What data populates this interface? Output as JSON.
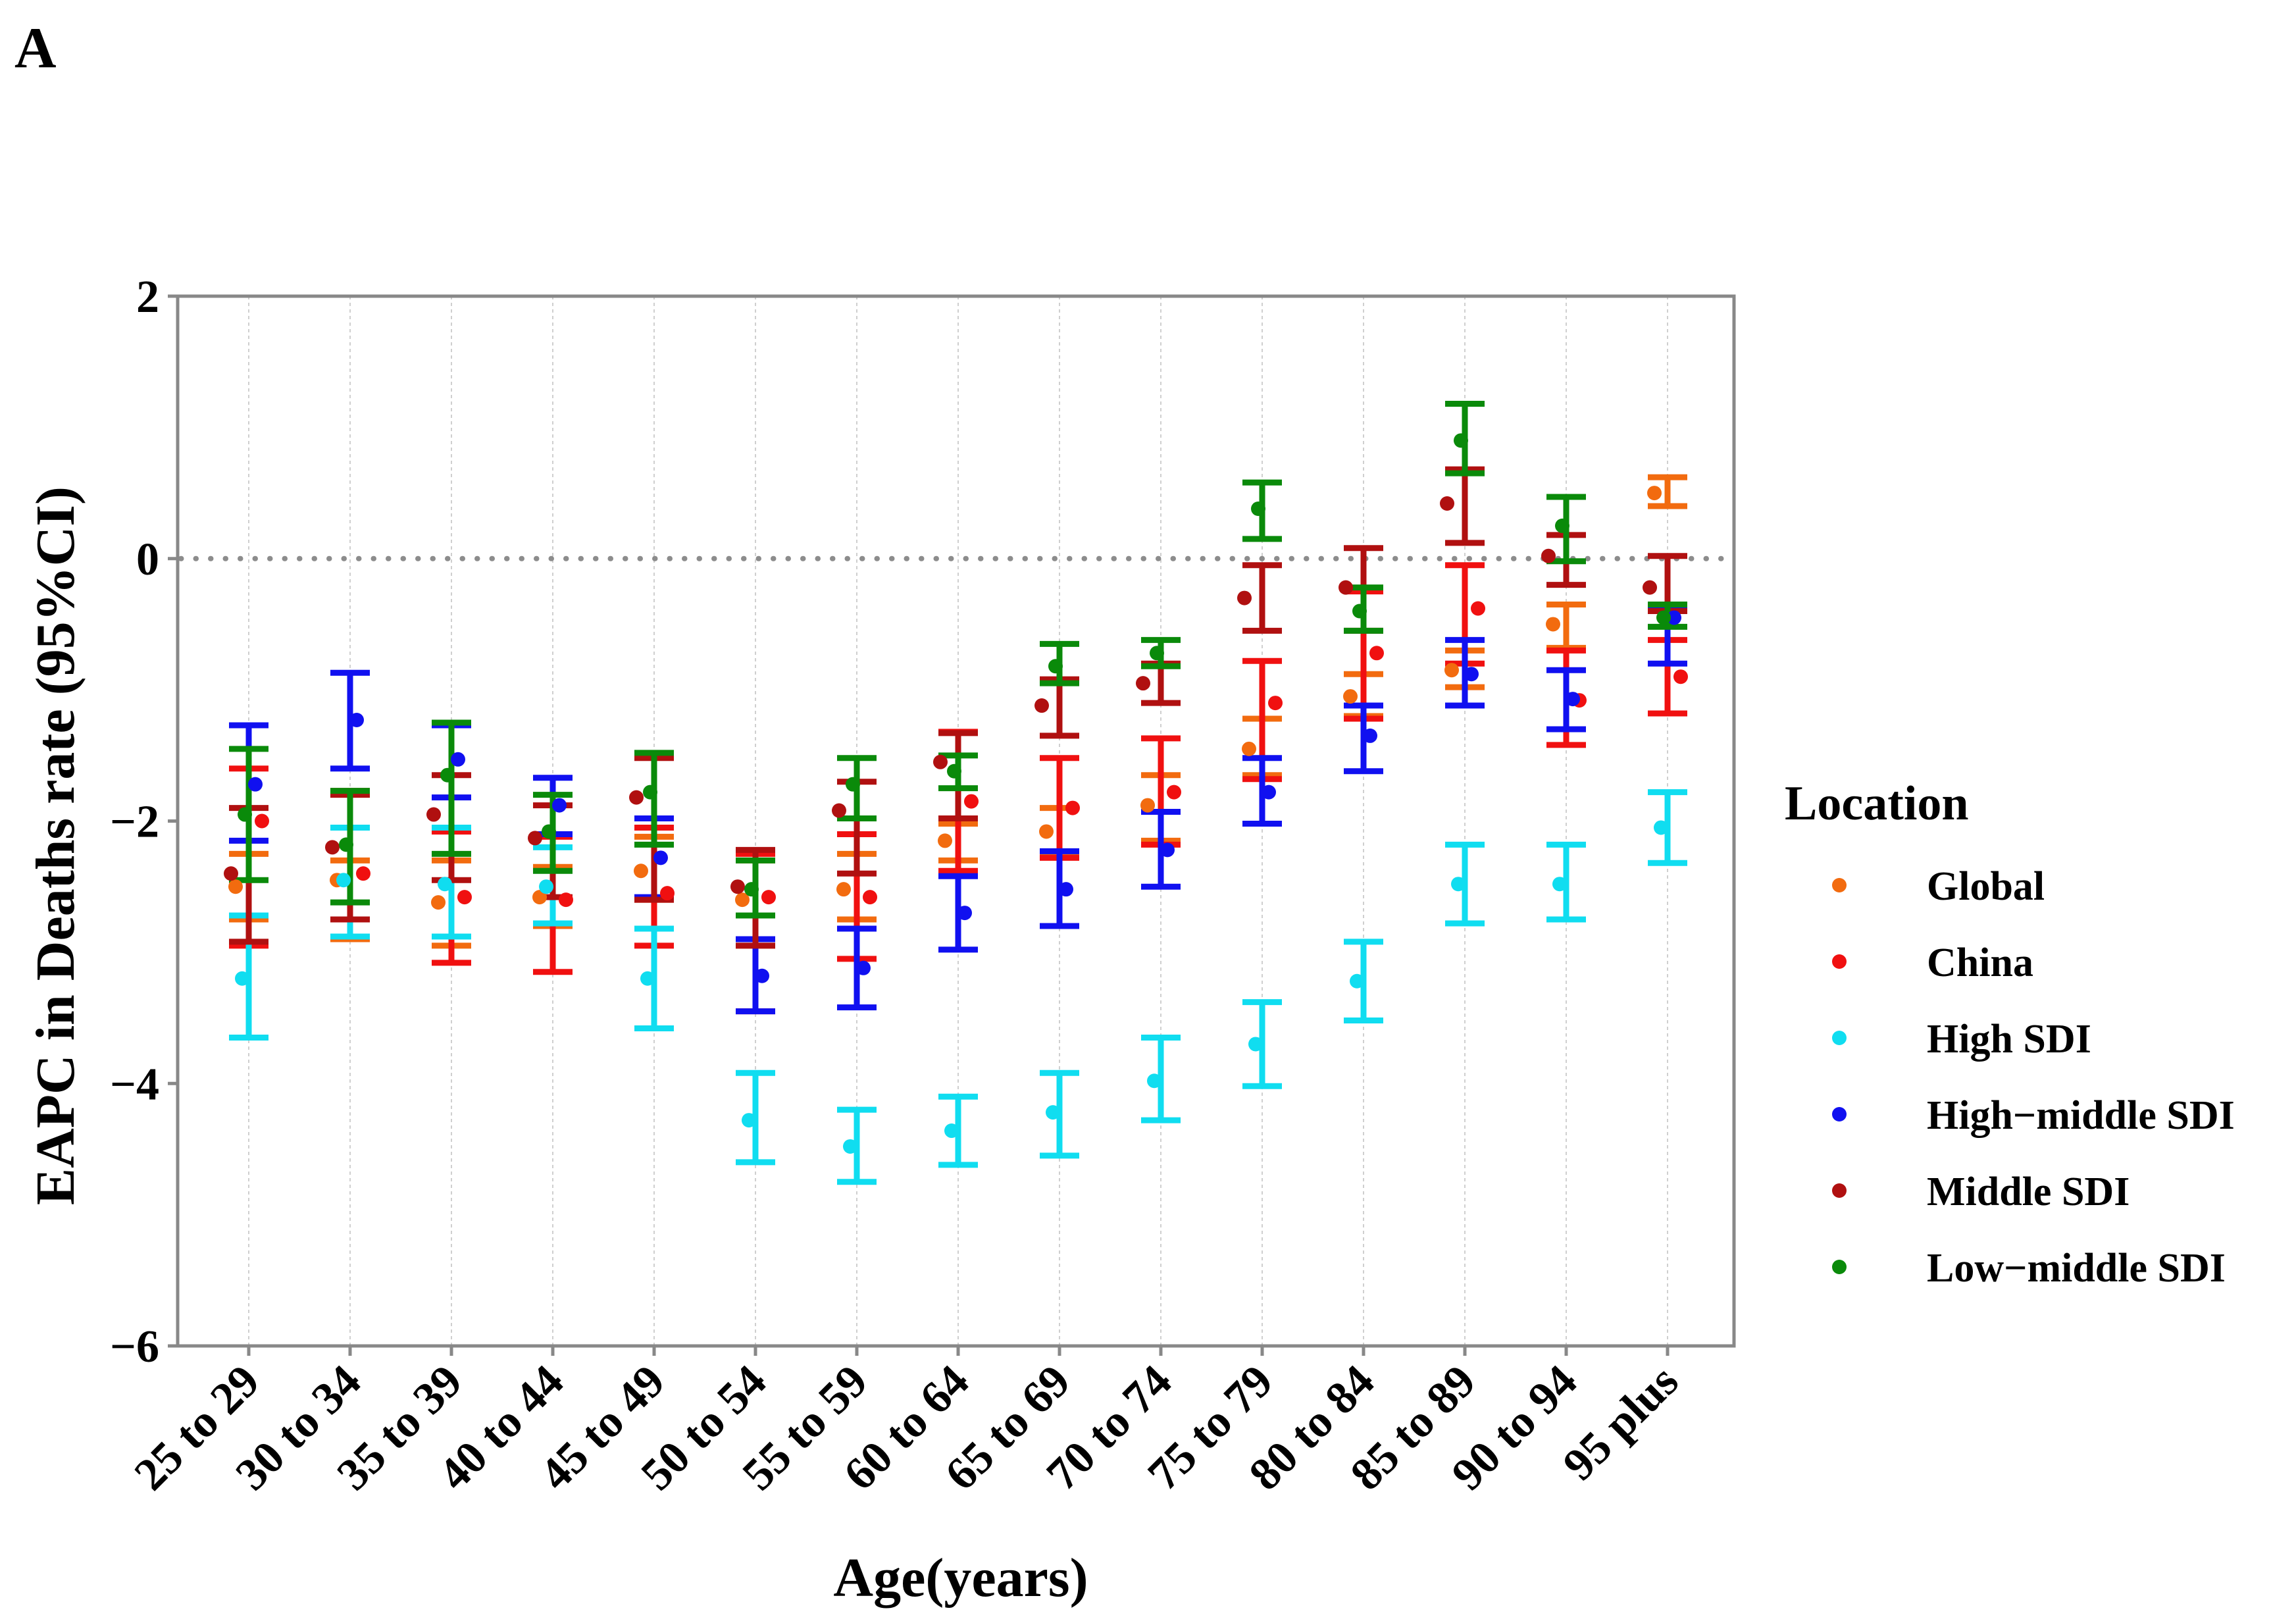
{
  "panel_label": "A",
  "chart_data": {
    "type": "scatter-errorbar",
    "title": "",
    "xlabel": "Age(years)",
    "ylabel": "EAPC in Deaths rate (95%CI)",
    "ylim": [
      -6,
      2
    ],
    "yticks": [
      2,
      0,
      -2,
      -4,
      -6
    ],
    "ytick_labels": [
      "2",
      "0",
      "−2",
      "−4",
      "−6"
    ],
    "reference_line": 0,
    "categories": [
      "25 to 29",
      "30 to 34",
      "35 to 39",
      "40 to 44",
      "45 to 49",
      "50 to 54",
      "55 to 59",
      "60 to 64",
      "65 to 69",
      "70 to 74",
      "75 to 79",
      "80 to 84",
      "85 to 89",
      "90 to 94",
      "95 plus"
    ],
    "legend_title": "Location",
    "legend_position": "right",
    "series": [
      {
        "name": "Global",
        "color": "#F26B0F",
        "values": [
          -2.5,
          -2.45,
          -2.62,
          -2.58,
          -2.38,
          -2.6,
          -2.52,
          -2.15,
          -2.08,
          -1.88,
          -1.45,
          -1.05,
          -0.85,
          -0.5,
          0.5
        ],
        "lower": [
          -2.75,
          -2.9,
          -2.95,
          -2.8,
          -2.6,
          -2.95,
          -2.75,
          -2.3,
          -2.25,
          -2.15,
          -1.65,
          -1.2,
          -0.98,
          -0.68,
          0.4
        ],
        "upper": [
          -2.25,
          -2.3,
          -2.3,
          -2.35,
          -2.12,
          -2.3,
          -2.25,
          -2.02,
          -1.9,
          -1.65,
          -1.22,
          -0.88,
          -0.7,
          -0.35,
          0.62
        ]
      },
      {
        "name": "China",
        "color": "#F01010",
        "values": [
          -2.0,
          -2.4,
          -2.58,
          -2.6,
          -2.55,
          -2.58,
          -2.58,
          -1.85,
          -1.9,
          -1.78,
          -1.1,
          -0.72,
          -0.38,
          -1.08,
          -0.9
        ],
        "lower": [
          -2.95,
          -2.88,
          -3.08,
          -3.15,
          -2.95,
          -3.45,
          -3.05,
          -2.38,
          -2.28,
          -2.18,
          -1.68,
          -1.22,
          -0.8,
          -1.42,
          -1.18
        ],
        "upper": [
          -1.6,
          -1.77,
          -2.08,
          -2.12,
          -2.05,
          -2.25,
          -2.1,
          -1.32,
          -1.52,
          -1.37,
          -0.78,
          -0.25,
          -0.05,
          -0.7,
          -0.62
        ]
      },
      {
        "name": "High SDI",
        "color": "#10DDF0",
        "values": [
          -3.2,
          -2.45,
          -2.48,
          -2.5,
          -3.2,
          -4.28,
          -4.48,
          -4.36,
          -4.22,
          -3.98,
          -3.7,
          -3.22,
          -2.48,
          -2.48,
          -2.05
        ],
        "lower": [
          -3.65,
          -2.88,
          -2.88,
          -2.78,
          -3.58,
          -4.6,
          -4.75,
          -4.62,
          -4.55,
          -4.28,
          -4.02,
          -3.52,
          -2.78,
          -2.75,
          -2.32
        ],
        "upper": [
          -2.72,
          -2.05,
          -2.05,
          -2.2,
          -2.82,
          -3.92,
          -4.2,
          -4.1,
          -3.92,
          -3.65,
          -3.38,
          -2.92,
          -2.18,
          -2.18,
          -1.78
        ]
      },
      {
        "name": "High−middle SDI",
        "color": "#1010F0",
        "values": [
          -1.72,
          -1.23,
          -1.53,
          -1.88,
          -2.28,
          -3.18,
          -3.12,
          -2.7,
          -2.52,
          -2.22,
          -1.78,
          -1.35,
          -0.88,
          -1.07,
          -0.45
        ],
        "lower": [
          -2.15,
          -1.6,
          -1.82,
          -2.1,
          -2.58,
          -3.45,
          -3.42,
          -2.98,
          -2.8,
          -2.5,
          -2.02,
          -1.62,
          -1.12,
          -1.3,
          -0.8
        ],
        "upper": [
          -1.27,
          -0.87,
          -1.27,
          -1.67,
          -1.98,
          -2.9,
          -2.82,
          -2.42,
          -2.23,
          -1.93,
          -1.52,
          -1.12,
          -0.62,
          -0.85,
          -0.38
        ]
      },
      {
        "name": "Middle SDI",
        "color": "#B01010",
        "values": [
          -2.4,
          -2.2,
          -1.95,
          -2.13,
          -1.82,
          -2.5,
          -1.92,
          -1.55,
          -1.12,
          -0.95,
          -0.3,
          -0.22,
          0.42,
          0.02,
          -0.22
        ],
        "lower": [
          -2.92,
          -2.75,
          -2.45,
          -2.58,
          -2.6,
          -2.95,
          -2.4,
          -1.98,
          -1.35,
          -1.1,
          -0.55,
          -0.55,
          0.12,
          -0.2,
          -0.4
        ],
        "upper": [
          -1.9,
          -1.8,
          -1.65,
          -1.88,
          -1.52,
          -2.22,
          -1.7,
          -1.33,
          -0.92,
          -0.8,
          -0.05,
          0.08,
          0.68,
          0.18,
          0.02
        ]
      },
      {
        "name": "Low−middle SDI",
        "color": "#0A8A0A",
        "values": [
          -1.95,
          -2.18,
          -1.65,
          -2.08,
          -1.78,
          -2.52,
          -1.72,
          -1.62,
          -0.82,
          -0.72,
          0.38,
          -0.4,
          0.9,
          0.25,
          -0.45
        ],
        "lower": [
          -2.45,
          -2.62,
          -2.25,
          -2.38,
          -2.18,
          -2.72,
          -1.98,
          -1.75,
          -0.95,
          -0.82,
          0.15,
          -0.55,
          0.65,
          -0.02,
          -0.52
        ],
        "upper": [
          -1.45,
          -1.77,
          -1.25,
          -1.8,
          -1.48,
          -2.3,
          -1.52,
          -1.5,
          -0.65,
          -0.62,
          0.58,
          -0.22,
          1.18,
          0.47,
          -0.35
        ]
      }
    ]
  }
}
